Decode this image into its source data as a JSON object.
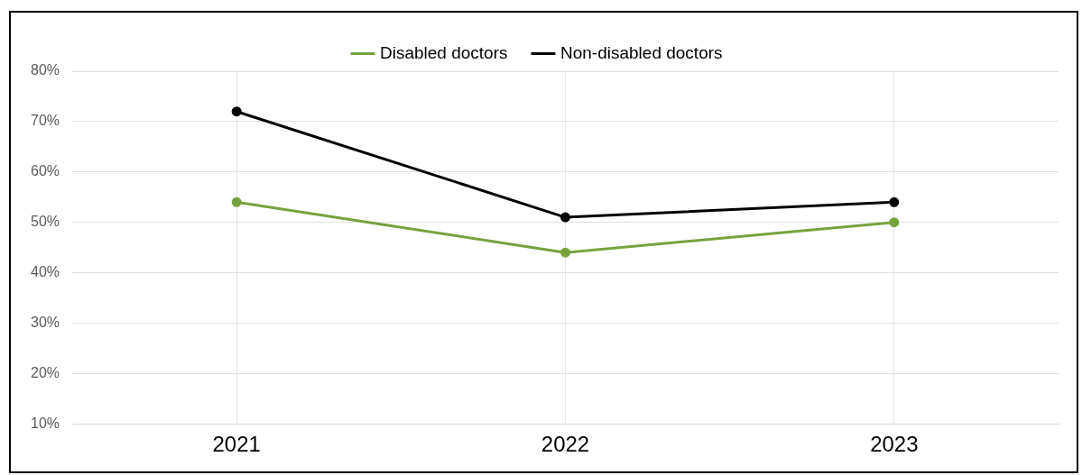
{
  "chart_data": {
    "type": "line",
    "categories": [
      "2021",
      "2022",
      "2023"
    ],
    "series": [
      {
        "name": "Disabled doctors",
        "color": "#77a23f",
        "values": [
          54,
          44,
          50
        ]
      },
      {
        "name": "Non-disabled doctors",
        "color": "#000000",
        "values": [
          72,
          51,
          54
        ]
      }
    ],
    "ylim": [
      10,
      80
    ],
    "yticks": [
      {
        "value": 10,
        "label": "10%"
      },
      {
        "value": 20,
        "label": "20%"
      },
      {
        "value": 30,
        "label": "30%"
      },
      {
        "value": 40,
        "label": "40%"
      },
      {
        "value": 50,
        "label": "50%"
      },
      {
        "value": 60,
        "label": "60%"
      },
      {
        "value": 70,
        "label": "70%"
      },
      {
        "value": 80,
        "label": "80%"
      }
    ],
    "grid": true,
    "legend": "top",
    "marker": "circle",
    "line_style": "solid"
  }
}
